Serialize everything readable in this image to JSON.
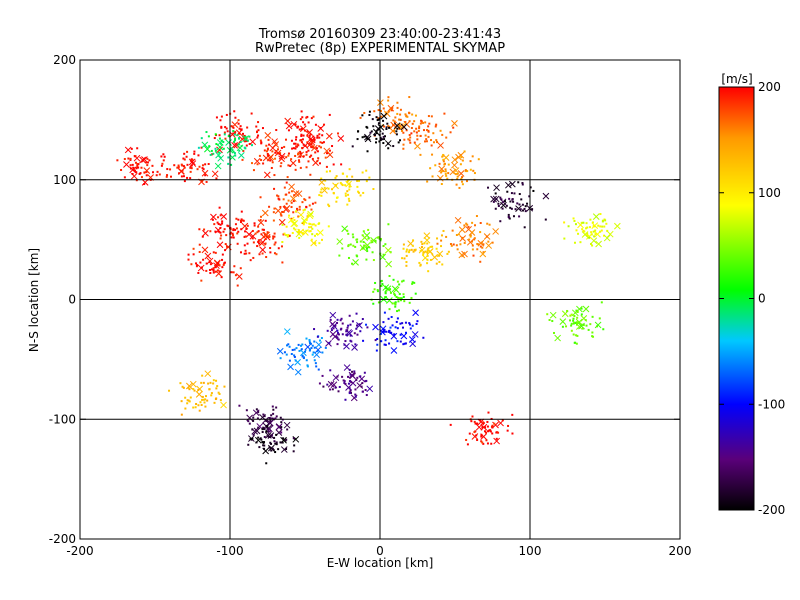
{
  "chart_data": {
    "type": "scatter",
    "title": "Tromsø 20160309 23:40:00-23:41:43",
    "subtitle": "RwPretec (8p) EXPERIMENTAL SKYMAP",
    "xlabel": "E-W location [km]",
    "ylabel": "N-S location [km]",
    "xlim": [
      -200,
      200
    ],
    "ylim": [
      -200,
      200
    ],
    "x_ticks": [
      -200,
      -100,
      0,
      100,
      200
    ],
    "y_ticks": [
      -200,
      -100,
      0,
      100,
      200
    ],
    "grid": true,
    "colorbar": {
      "label": "[m/s]",
      "range": [
        -200,
        200
      ],
      "ticks": [
        200,
        100,
        0,
        -100,
        -200
      ],
      "colors": [
        "#000000",
        "#5a007a",
        "#0000ff",
        "#00c8ff",
        "#00ff00",
        "#ffff00",
        "#ff0000"
      ]
    },
    "clusters": [
      {
        "x": -50,
        "y": 140,
        "v": 200
      },
      {
        "x": -45,
        "y": 125,
        "v": 190
      },
      {
        "x": -70,
        "y": 120,
        "v": 185
      },
      {
        "x": -95,
        "y": 140,
        "v": 200
      },
      {
        "x": -130,
        "y": 110,
        "v": 195
      },
      {
        "x": -160,
        "y": 110,
        "v": 200
      },
      {
        "x": -100,
        "y": 60,
        "v": 200
      },
      {
        "x": -110,
        "y": 30,
        "v": 195
      },
      {
        "x": -80,
        "y": 50,
        "v": 190
      },
      {
        "x": -60,
        "y": 80,
        "v": 180
      },
      {
        "x": 30,
        "y": 140,
        "v": 170
      },
      {
        "x": 50,
        "y": 110,
        "v": 150
      },
      {
        "x": 10,
        "y": 150,
        "v": 160
      },
      {
        "x": 0,
        "y": 140,
        "v": -200
      },
      {
        "x": -100,
        "y": 128,
        "v": -10
      },
      {
        "x": -10,
        "y": 45,
        "v": 40
      },
      {
        "x": 10,
        "y": 5,
        "v": 30
      },
      {
        "x": -25,
        "y": 95,
        "v": 110
      },
      {
        "x": -50,
        "y": 60,
        "v": 90
      },
      {
        "x": 30,
        "y": 40,
        "v": 120
      },
      {
        "x": 60,
        "y": 50,
        "v": 160
      },
      {
        "x": 130,
        "y": -20,
        "v": 40
      },
      {
        "x": 140,
        "y": 60,
        "v": 80
      },
      {
        "x": -50,
        "y": -45,
        "v": -60
      },
      {
        "x": -25,
        "y": -25,
        "v": -140
      },
      {
        "x": -20,
        "y": -70,
        "v": -150
      },
      {
        "x": -75,
        "y": -100,
        "v": -170
      },
      {
        "x": -70,
        "y": -120,
        "v": -190
      },
      {
        "x": 10,
        "y": -25,
        "v": -100
      },
      {
        "x": 70,
        "y": -110,
        "v": 200
      },
      {
        "x": -120,
        "y": -80,
        "v": 130
      },
      {
        "x": 90,
        "y": 80,
        "v": -180
      }
    ]
  }
}
